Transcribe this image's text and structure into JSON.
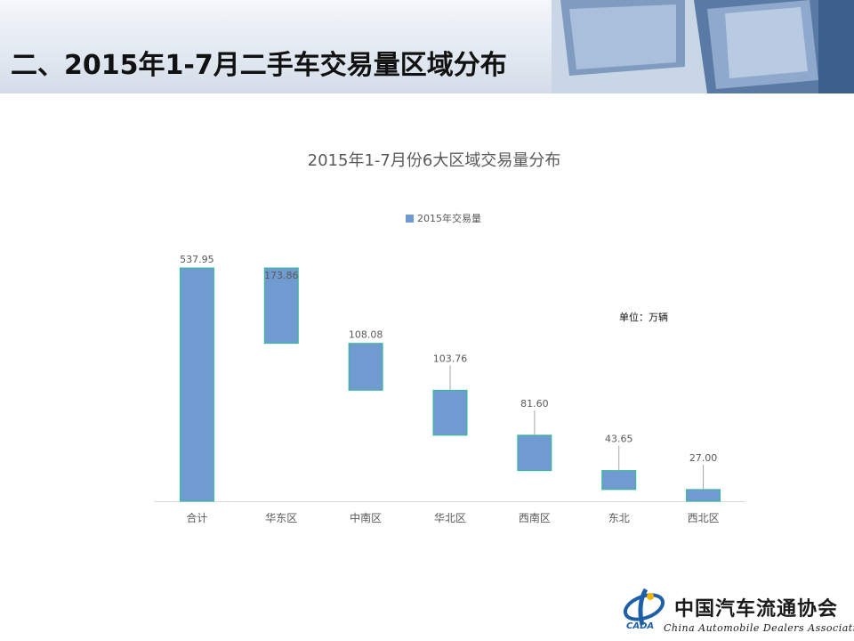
{
  "slide_title": "二、2015年1-7月二手车交易量区域分布",
  "unit_note": "单位：万辆",
  "logo": {
    "cn_name": "中国汽车流通协会",
    "en_name": "China Automobile Dealers Association",
    "abbr": "CADA"
  },
  "colors": {
    "bar_fill": "#6f9bd1",
    "bar_border": "#2fbf8f",
    "label_text": "#595959"
  },
  "chart_data": {
    "type": "bar",
    "subtype": "waterfall",
    "title": "2015年1-7月份6大区域交易量分布",
    "legend": "2015年交易量",
    "legend_position": "top",
    "categories": [
      "合计",
      "华东区",
      "中南区",
      "华北区",
      "西南区",
      "东北",
      "西北区"
    ],
    "values": [
      537.95,
      173.86,
      108.08,
      103.76,
      81.6,
      43.65,
      27.0
    ],
    "value_labels": [
      "537.95",
      "173.86",
      "108.08",
      "103.76",
      "81.60",
      "43.65",
      "27.00"
    ],
    "ylim": [
      0,
      537.95
    ],
    "grid": false
  }
}
